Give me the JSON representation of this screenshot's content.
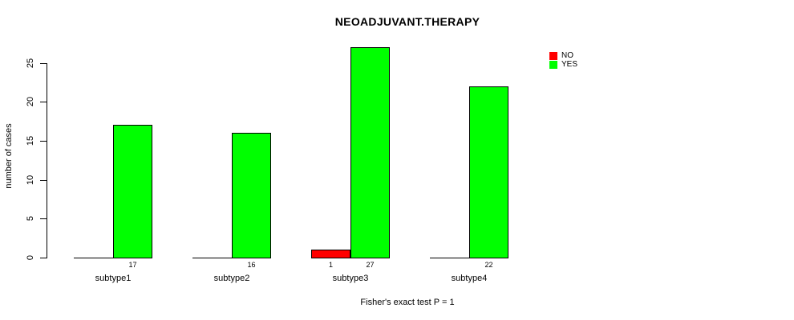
{
  "chart_data": {
    "type": "bar",
    "title": "NEOADJUVANT.THERAPY",
    "ylabel": "number of cases",
    "footnote": "Fisher's exact test P = 1",
    "categories": [
      "subtype1",
      "subtype2",
      "subtype3",
      "subtype4"
    ],
    "series": [
      {
        "name": "NO",
        "color": "#ff0000",
        "values": [
          0,
          0,
          1,
          0
        ],
        "bar_labels": [
          "",
          "",
          "1",
          ""
        ]
      },
      {
        "name": "YES",
        "color": "#00ff00",
        "values": [
          17,
          16,
          27,
          22
        ],
        "bar_labels": [
          "17",
          "16",
          "27",
          "22"
        ]
      }
    ],
    "yticks": [
      0,
      5,
      10,
      15,
      20,
      25
    ],
    "ylim": [
      0,
      27
    ],
    "grid": false,
    "legend_position": "top-right"
  }
}
